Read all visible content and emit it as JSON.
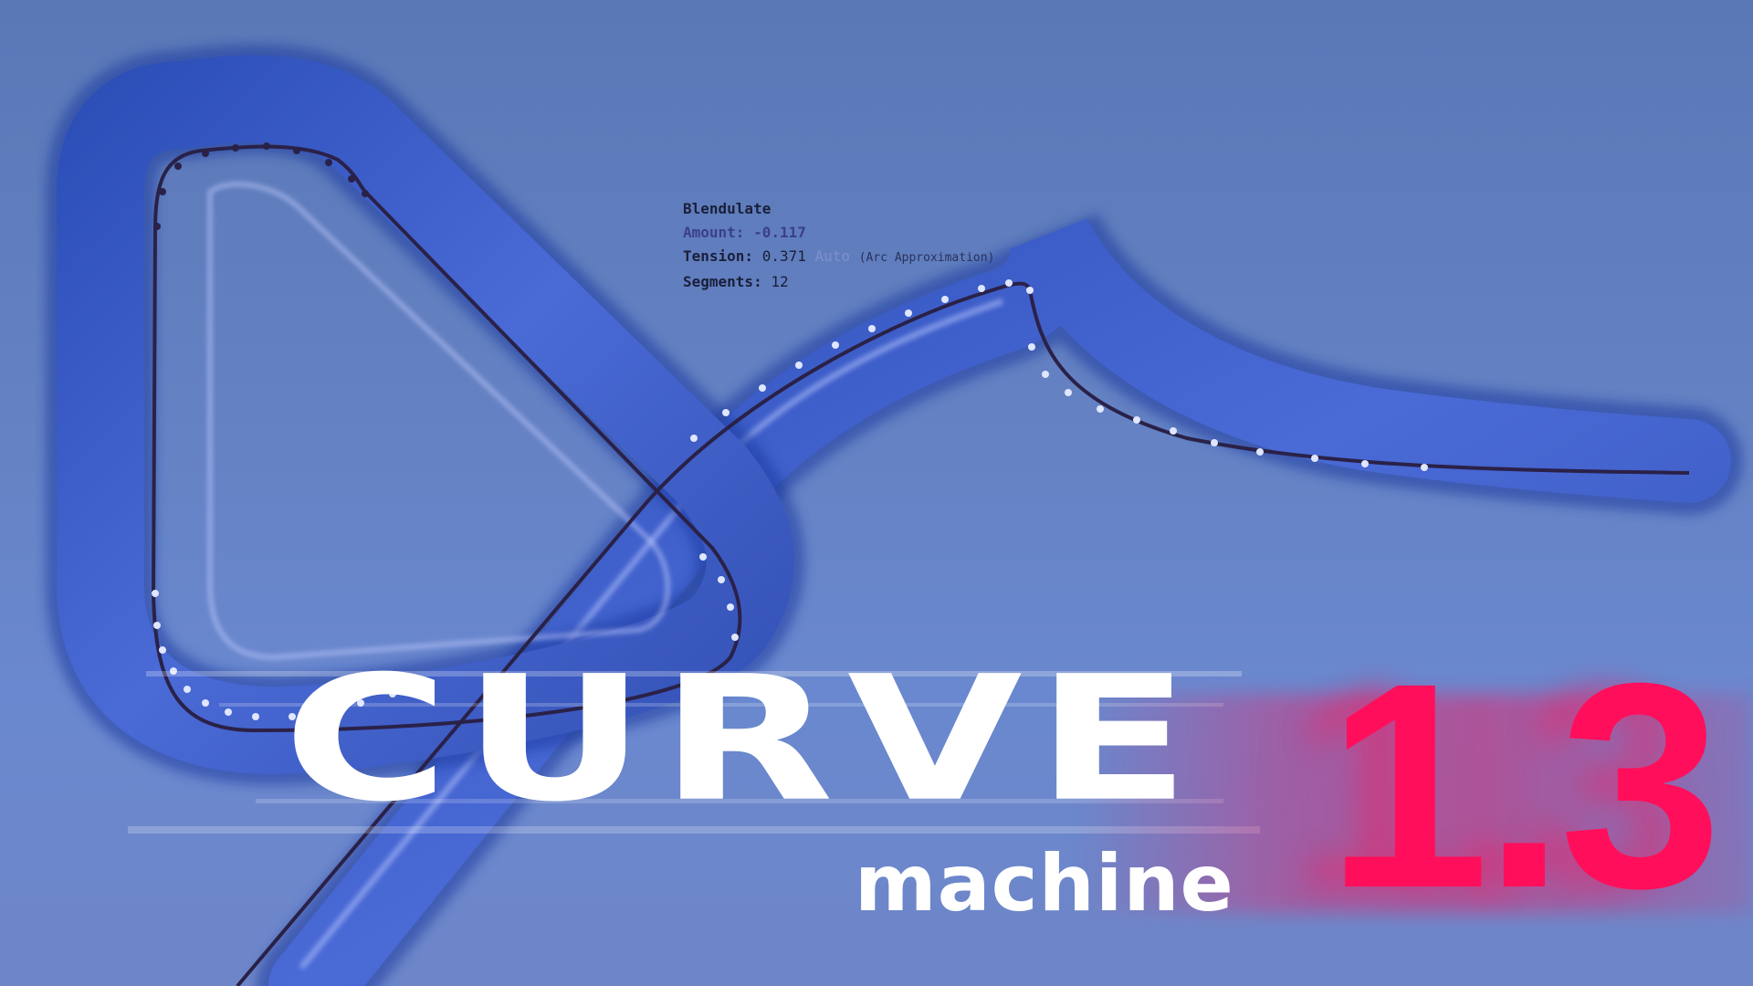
{
  "overlay": {
    "title": "Blendulate",
    "amount_label": "Amount:",
    "amount_value": "-0.117",
    "tension_label": "Tension:",
    "tension_value": "0.371",
    "tension_mode": "Auto",
    "tension_note": "(Arc Approximation)",
    "segments_label": "Segments:",
    "segments_value": "12"
  },
  "logo": {
    "word": "CURVE",
    "sub": "machine",
    "version": "1.3"
  },
  "colors": {
    "background": "#6582c4",
    "tube": "#3f5fc8",
    "curve_line": "#2a2148",
    "dots": "#dfe6ff",
    "version": "#ff0f5b",
    "logo": "#ffffff"
  }
}
